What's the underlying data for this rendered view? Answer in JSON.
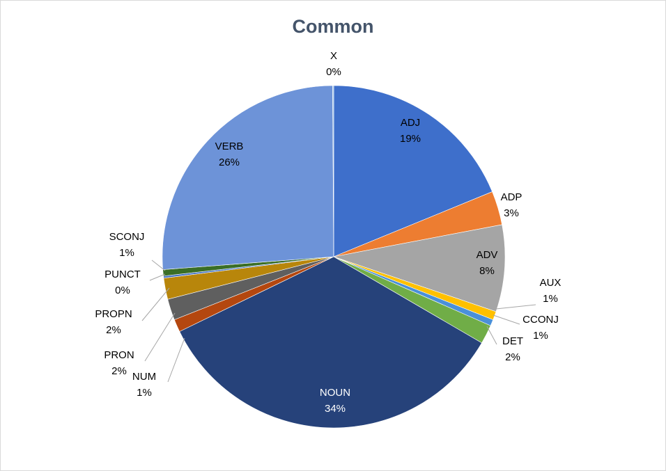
{
  "chart_data": {
    "type": "pie",
    "title": "Common",
    "slices": [
      {
        "name": "ADJ",
        "value": 19,
        "label": "19%",
        "color": "#3e6fcb"
      },
      {
        "name": "ADP",
        "value": 3,
        "label": "3%",
        "color": "#ed7d31"
      },
      {
        "name": "ADV",
        "value": 8,
        "label": "8%",
        "color": "#a5a5a5"
      },
      {
        "name": "AUX",
        "value": 1,
        "label": "1%",
        "color": "#ffc000"
      },
      {
        "name": "CCONJ",
        "value": 1,
        "label": "1%",
        "color": "#4a90d9"
      },
      {
        "name": "DET",
        "value": 2,
        "label": "2%",
        "color": "#70ad47"
      },
      {
        "name": "NOUN",
        "value": 34,
        "label": "34%",
        "color": "#26427a"
      },
      {
        "name": "NUM",
        "value": 1,
        "label": "1%",
        "color": "#b4470f"
      },
      {
        "name": "PRON",
        "value": 2,
        "label": "2%",
        "color": "#5f5f5f"
      },
      {
        "name": "PROPN",
        "value": 2,
        "label": "2%",
        "color": "#b8860b"
      },
      {
        "name": "PUNCT",
        "value": 0,
        "label": "0%",
        "color": "#4472c4"
      },
      {
        "name": "SCONJ",
        "value": 1,
        "label": "1%",
        "color": "#3a6e26"
      },
      {
        "name": "VERB",
        "value": 26,
        "label": "26%",
        "color": "#6d93d8"
      },
      {
        "name": "X",
        "value": 0,
        "label": "0%",
        "color": "#9dc3e6"
      }
    ],
    "legend": "none"
  }
}
